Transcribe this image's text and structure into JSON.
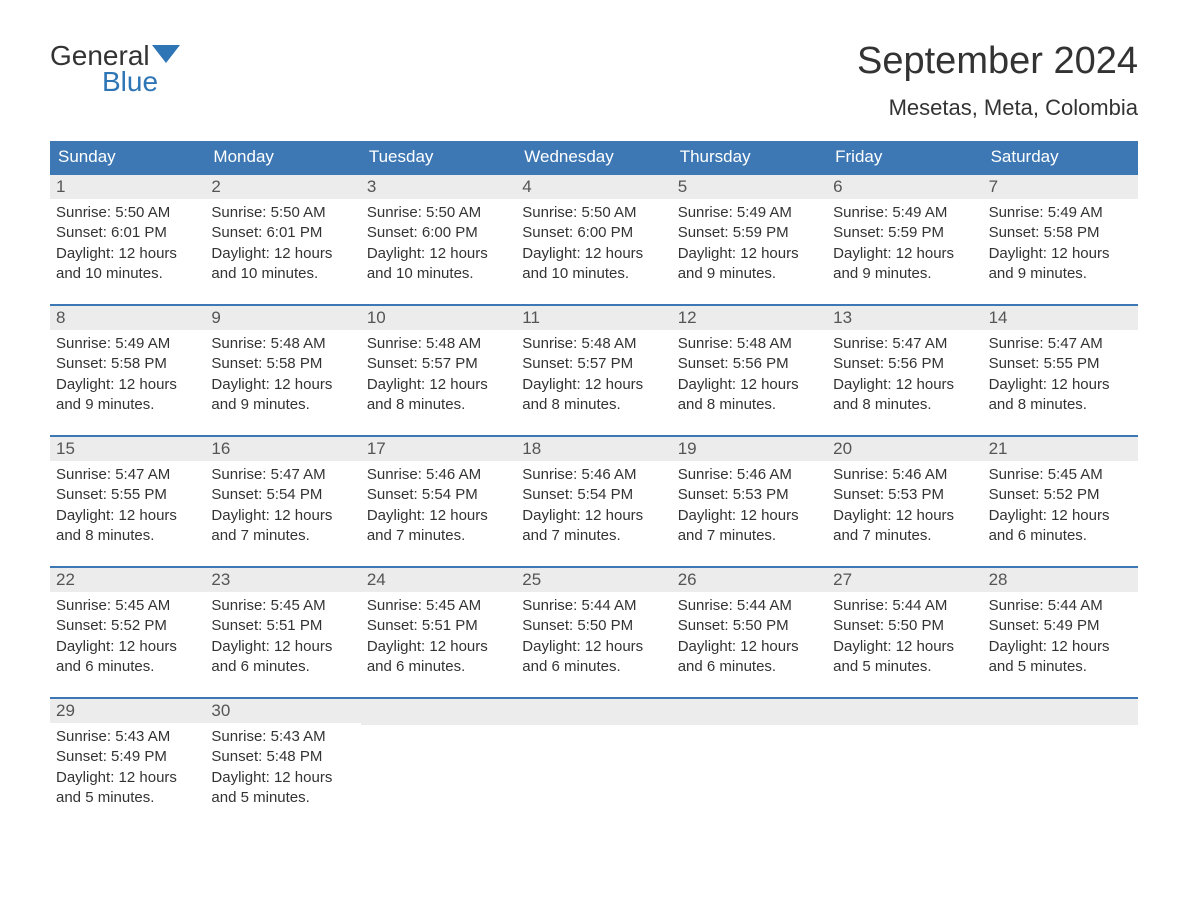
{
  "logo": {
    "text_general": "General",
    "text_blue": "Blue",
    "shape_color": "#2e75b6"
  },
  "title": "September 2024",
  "location": "Mesetas, Meta, Colombia",
  "colors": {
    "header_bg": "#3d78b4",
    "header_text": "#ffffff",
    "daynum_bg": "#ececec",
    "daynum_text": "#555555",
    "body_text": "#333333",
    "border": "#3d78b4"
  },
  "day_headers": [
    "Sunday",
    "Monday",
    "Tuesday",
    "Wednesday",
    "Thursday",
    "Friday",
    "Saturday"
  ],
  "weeks": [
    [
      {
        "n": "1",
        "sunrise": "Sunrise: 5:50 AM",
        "sunset": "Sunset: 6:01 PM",
        "d1": "Daylight: 12 hours",
        "d2": "and 10 minutes."
      },
      {
        "n": "2",
        "sunrise": "Sunrise: 5:50 AM",
        "sunset": "Sunset: 6:01 PM",
        "d1": "Daylight: 12 hours",
        "d2": "and 10 minutes."
      },
      {
        "n": "3",
        "sunrise": "Sunrise: 5:50 AM",
        "sunset": "Sunset: 6:00 PM",
        "d1": "Daylight: 12 hours",
        "d2": "and 10 minutes."
      },
      {
        "n": "4",
        "sunrise": "Sunrise: 5:50 AM",
        "sunset": "Sunset: 6:00 PM",
        "d1": "Daylight: 12 hours",
        "d2": "and 10 minutes."
      },
      {
        "n": "5",
        "sunrise": "Sunrise: 5:49 AM",
        "sunset": "Sunset: 5:59 PM",
        "d1": "Daylight: 12 hours",
        "d2": "and 9 minutes."
      },
      {
        "n": "6",
        "sunrise": "Sunrise: 5:49 AM",
        "sunset": "Sunset: 5:59 PM",
        "d1": "Daylight: 12 hours",
        "d2": "and 9 minutes."
      },
      {
        "n": "7",
        "sunrise": "Sunrise: 5:49 AM",
        "sunset": "Sunset: 5:58 PM",
        "d1": "Daylight: 12 hours",
        "d2": "and 9 minutes."
      }
    ],
    [
      {
        "n": "8",
        "sunrise": "Sunrise: 5:49 AM",
        "sunset": "Sunset: 5:58 PM",
        "d1": "Daylight: 12 hours",
        "d2": "and 9 minutes."
      },
      {
        "n": "9",
        "sunrise": "Sunrise: 5:48 AM",
        "sunset": "Sunset: 5:58 PM",
        "d1": "Daylight: 12 hours",
        "d2": "and 9 minutes."
      },
      {
        "n": "10",
        "sunrise": "Sunrise: 5:48 AM",
        "sunset": "Sunset: 5:57 PM",
        "d1": "Daylight: 12 hours",
        "d2": "and 8 minutes."
      },
      {
        "n": "11",
        "sunrise": "Sunrise: 5:48 AM",
        "sunset": "Sunset: 5:57 PM",
        "d1": "Daylight: 12 hours",
        "d2": "and 8 minutes."
      },
      {
        "n": "12",
        "sunrise": "Sunrise: 5:48 AM",
        "sunset": "Sunset: 5:56 PM",
        "d1": "Daylight: 12 hours",
        "d2": "and 8 minutes."
      },
      {
        "n": "13",
        "sunrise": "Sunrise: 5:47 AM",
        "sunset": "Sunset: 5:56 PM",
        "d1": "Daylight: 12 hours",
        "d2": "and 8 minutes."
      },
      {
        "n": "14",
        "sunrise": "Sunrise: 5:47 AM",
        "sunset": "Sunset: 5:55 PM",
        "d1": "Daylight: 12 hours",
        "d2": "and 8 minutes."
      }
    ],
    [
      {
        "n": "15",
        "sunrise": "Sunrise: 5:47 AM",
        "sunset": "Sunset: 5:55 PM",
        "d1": "Daylight: 12 hours",
        "d2": "and 8 minutes."
      },
      {
        "n": "16",
        "sunrise": "Sunrise: 5:47 AM",
        "sunset": "Sunset: 5:54 PM",
        "d1": "Daylight: 12 hours",
        "d2": "and 7 minutes."
      },
      {
        "n": "17",
        "sunrise": "Sunrise: 5:46 AM",
        "sunset": "Sunset: 5:54 PM",
        "d1": "Daylight: 12 hours",
        "d2": "and 7 minutes."
      },
      {
        "n": "18",
        "sunrise": "Sunrise: 5:46 AM",
        "sunset": "Sunset: 5:54 PM",
        "d1": "Daylight: 12 hours",
        "d2": "and 7 minutes."
      },
      {
        "n": "19",
        "sunrise": "Sunrise: 5:46 AM",
        "sunset": "Sunset: 5:53 PM",
        "d1": "Daylight: 12 hours",
        "d2": "and 7 minutes."
      },
      {
        "n": "20",
        "sunrise": "Sunrise: 5:46 AM",
        "sunset": "Sunset: 5:53 PM",
        "d1": "Daylight: 12 hours",
        "d2": "and 7 minutes."
      },
      {
        "n": "21",
        "sunrise": "Sunrise: 5:45 AM",
        "sunset": "Sunset: 5:52 PM",
        "d1": "Daylight: 12 hours",
        "d2": "and 6 minutes."
      }
    ],
    [
      {
        "n": "22",
        "sunrise": "Sunrise: 5:45 AM",
        "sunset": "Sunset: 5:52 PM",
        "d1": "Daylight: 12 hours",
        "d2": "and 6 minutes."
      },
      {
        "n": "23",
        "sunrise": "Sunrise: 5:45 AM",
        "sunset": "Sunset: 5:51 PM",
        "d1": "Daylight: 12 hours",
        "d2": "and 6 minutes."
      },
      {
        "n": "24",
        "sunrise": "Sunrise: 5:45 AM",
        "sunset": "Sunset: 5:51 PM",
        "d1": "Daylight: 12 hours",
        "d2": "and 6 minutes."
      },
      {
        "n": "25",
        "sunrise": "Sunrise: 5:44 AM",
        "sunset": "Sunset: 5:50 PM",
        "d1": "Daylight: 12 hours",
        "d2": "and 6 minutes."
      },
      {
        "n": "26",
        "sunrise": "Sunrise: 5:44 AM",
        "sunset": "Sunset: 5:50 PM",
        "d1": "Daylight: 12 hours",
        "d2": "and 6 minutes."
      },
      {
        "n": "27",
        "sunrise": "Sunrise: 5:44 AM",
        "sunset": "Sunset: 5:50 PM",
        "d1": "Daylight: 12 hours",
        "d2": "and 5 minutes."
      },
      {
        "n": "28",
        "sunrise": "Sunrise: 5:44 AM",
        "sunset": "Sunset: 5:49 PM",
        "d1": "Daylight: 12 hours",
        "d2": "and 5 minutes."
      }
    ],
    [
      {
        "n": "29",
        "sunrise": "Sunrise: 5:43 AM",
        "sunset": "Sunset: 5:49 PM",
        "d1": "Daylight: 12 hours",
        "d2": "and 5 minutes."
      },
      {
        "n": "30",
        "sunrise": "Sunrise: 5:43 AM",
        "sunset": "Sunset: 5:48 PM",
        "d1": "Daylight: 12 hours",
        "d2": "and 5 minutes."
      },
      null,
      null,
      null,
      null,
      null
    ]
  ]
}
